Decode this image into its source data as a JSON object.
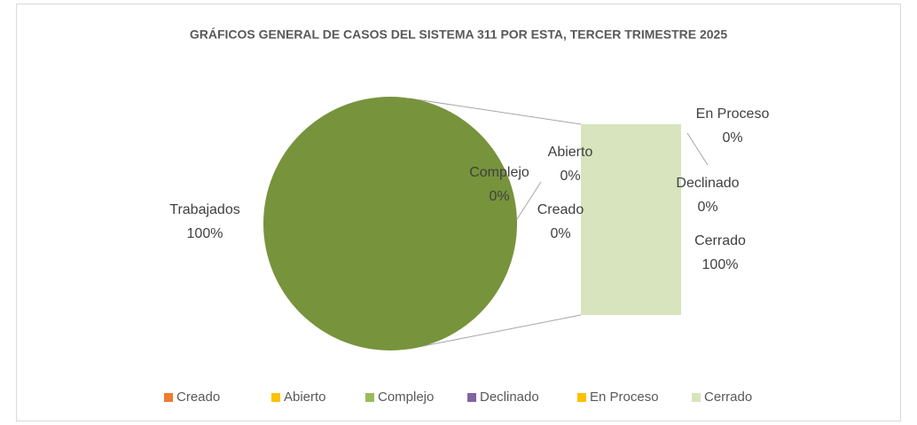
{
  "chart_data": {
    "type": "pie-of-bar",
    "title": "GRÁFICOS GENERAL DE CASOS DEL SISTEMA 311 POR ESTA, TERCER TRIMESTRE 2025",
    "categories": [
      "Creado",
      "Abierto",
      "Complejo",
      "Declinado",
      "En Proceso",
      "Cerrado"
    ],
    "values": [
      0,
      0,
      0,
      0,
      0,
      100
    ],
    "value_labels": [
      "0%",
      "0%",
      "0%",
      "0%",
      "0%",
      "100%"
    ],
    "colors": [
      "#ed7d31",
      "#ffc000",
      "#9bbb59",
      "#8064a2",
      "#ffc000",
      "#d7e4bd"
    ],
    "other": {
      "label": "Trabajados",
      "value": 100,
      "value_label": "100%",
      "color": "#77933c"
    },
    "legend": "bottom"
  }
}
